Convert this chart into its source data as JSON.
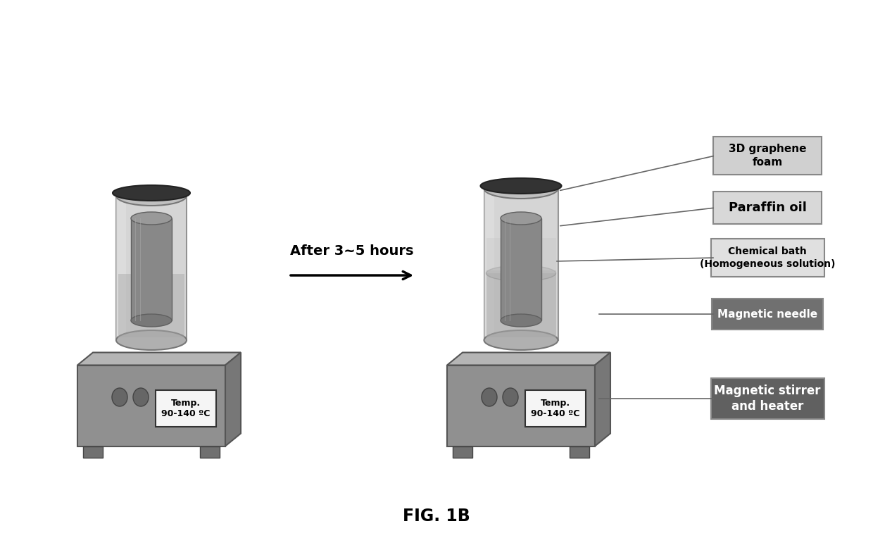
{
  "fig_label": "FIG. 1B",
  "arrow_label": "After 3~5 hours",
  "bg_color": "#ffffff",
  "temp_label": "Temp.\n90-140 ºC",
  "label_graphene": "3D graphene\nfoam",
  "label_paraffin": "Paraffin oil",
  "label_chem": "Chemical bath\n(Homogeneous solution)",
  "label_needle": "Magnetic needle",
  "label_heater": "Magnetic stirrer\nand heater",
  "lbl_graphene_box_color": "#d0d0d0",
  "lbl_paraffin_box_color": "#d8d8d8",
  "lbl_chem_box_color": "#e0e0e0",
  "lbl_needle_box_color": "#707070",
  "lbl_heater_box_color": "#606060",
  "lbl_light_text": "#000000",
  "lbl_dark_text": "#ffffff"
}
